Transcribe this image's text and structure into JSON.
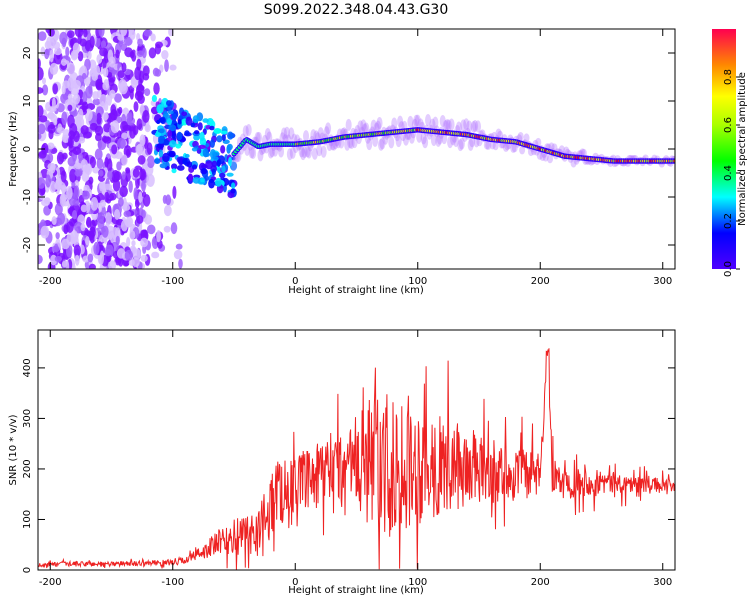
{
  "colors": {
    "snr_line": "#ee2222",
    "axis": "#000000",
    "background": "#ffffff"
  },
  "chart_data": [
    {
      "type": "heatmap",
      "title": "S099.2022.348.04.43.G30",
      "xlabel": "Height of straight line (km)",
      "ylabel": "Frequency (Hz)",
      "xlim": [
        -210,
        310
      ],
      "ylim": [
        -25,
        25
      ],
      "x_ticks": [
        "-200",
        "-100",
        "0",
        "100",
        "200",
        "300"
      ],
      "y_ticks": [
        "-20",
        "-10",
        "0",
        "10",
        "20"
      ],
      "colormap": "hsv (purple → red)",
      "colorbar": {
        "label": "Normalized spectral amplitude",
        "range": [
          0,
          1
        ],
        "ticks": [
          "0.0",
          "0.2",
          "0.4",
          "0.6",
          "0.8"
        ]
      },
      "ridge": {
        "height": [
          -50,
          -40,
          -30,
          -20,
          -10,
          0,
          20,
          40,
          60,
          80,
          100,
          120,
          140,
          160,
          180,
          200,
          220,
          240,
          260,
          280,
          300
        ],
        "frequency": [
          -1.0,
          2.0,
          0.5,
          1.0,
          1.0,
          1.0,
          1.5,
          2.5,
          3.0,
          3.5,
          4.0,
          3.5,
          3.0,
          2.0,
          1.5,
          0.0,
          -1.5,
          -2.0,
          -2.5,
          -2.5,
          -2.5
        ]
      }
    },
    {
      "type": "line",
      "xlabel": "Height of straight line (km)",
      "ylabel": "SNR (10 * v/v)",
      "xlim": [
        -210,
        310
      ],
      "ylim": [
        0,
        475
      ],
      "x_ticks": [
        "-200",
        "-100",
        "0",
        "100",
        "200",
        "300"
      ],
      "y_ticks": [
        "0",
        "100",
        "200",
        "300",
        "400"
      ],
      "series": [
        {
          "x": [
            -210,
            -180,
            -150,
            -120,
            -100,
            -90,
            -80,
            -70,
            -60,
            -50,
            -40,
            -30,
            -25,
            -20,
            -15,
            -10,
            0,
            10,
            20,
            30,
            40,
            50,
            60,
            70,
            80,
            90,
            100,
            110,
            120,
            130,
            140,
            150,
            160,
            170,
            180,
            190,
            200,
            206,
            210,
            220,
            230,
            240,
            250,
            260,
            270,
            280,
            290,
            300,
            310
          ],
          "y": [
            10,
            12,
            12,
            14,
            15,
            20,
            30,
            45,
            55,
            65,
            70,
            80,
            100,
            130,
            160,
            150,
            170,
            175,
            185,
            190,
            195,
            205,
            215,
            220,
            220,
            215,
            210,
            210,
            205,
            205,
            200,
            195,
            195,
            190,
            190,
            190,
            185,
            440,
            180,
            175,
            175,
            175,
            175,
            172,
            170,
            170,
            170,
            168,
            165
          ],
          "spread": [
            4,
            5,
            5,
            5,
            6,
            8,
            12,
            20,
            30,
            35,
            40,
            45,
            55,
            70,
            70,
            60,
            55,
            60,
            70,
            80,
            90,
            110,
            130,
            150,
            150,
            140,
            120,
            110,
            100,
            90,
            80,
            70,
            65,
            60,
            55,
            50,
            45,
            0,
            40,
            35,
            30,
            28,
            25,
            22,
            20,
            18,
            15,
            14,
            12
          ]
        }
      ]
    }
  ]
}
